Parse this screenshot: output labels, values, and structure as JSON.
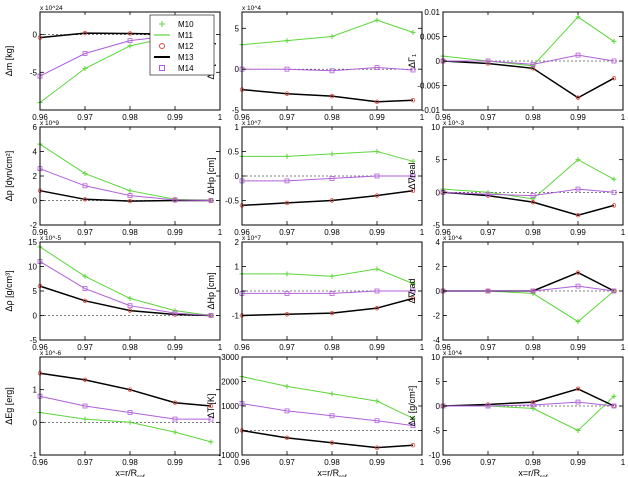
{
  "figure": {
    "xlabel": "x=r/R",
    "xlabel_sub": "ref",
    "xticks": [
      "0.96",
      "0.97",
      "0.98",
      "0.99",
      "1"
    ]
  },
  "legend": {
    "entries": [
      {
        "label": "M10",
        "color": "#5dd63a",
        "marker": "plus"
      },
      {
        "label": "M11",
        "color": "#5dd63a",
        "marker": "line"
      },
      {
        "label": "M12",
        "color": "#e0453a",
        "marker": "circle"
      },
      {
        "label": "M13",
        "color": "#000000",
        "marker": "line"
      },
      {
        "label": "M14",
        "color": "#b05fd8",
        "marker": "square"
      }
    ]
  },
  "colors": {
    "green": "#5dd63a",
    "red": "#e0453a",
    "black": "#000000",
    "purple": "#b05fd8",
    "blue": "#2a4fd8"
  },
  "chart_data": [
    {
      "type": "line",
      "ylabel": "Δm [kg]",
      "ylim": [
        -10,
        3
      ],
      "scale": "x 10^24",
      "yticks": [
        -10,
        -5,
        0
      ],
      "ytick_labels": [
        "",
        "-5",
        "0"
      ],
      "series": [
        {
          "name": "M10",
          "x": [
            0.96,
            0.97,
            0.98,
            0.99,
            0.998
          ],
          "y": [
            -9,
            -4.5,
            -1.5,
            -0.2,
            0
          ]
        },
        {
          "name": "M13",
          "x": [
            0.96,
            0.97,
            0.98,
            0.99,
            0.998
          ],
          "y": [
            -0.4,
            0.2,
            0.15,
            0.05,
            0
          ]
        },
        {
          "name": "M14",
          "x": [
            0.96,
            0.97,
            0.98,
            0.99,
            0.998
          ],
          "y": [
            -5.5,
            -2.5,
            -0.8,
            -0.1,
            0
          ]
        }
      ]
    },
    {
      "type": "line",
      "ylabel": "Δc [cm/s]",
      "ylim": [
        -5,
        7
      ],
      "scale": "x 10^4",
      "yticks": [
        -5,
        0,
        5
      ],
      "ytick_labels": [
        "-5",
        "0",
        "5"
      ],
      "series": [
        {
          "name": "M10",
          "x": [
            0.96,
            0.97,
            0.98,
            0.99,
            0.998
          ],
          "y": [
            3,
            3.5,
            4,
            6,
            4.5
          ]
        },
        {
          "name": "M13",
          "x": [
            0.96,
            0.97,
            0.98,
            0.99,
            0.998
          ],
          "y": [
            -2.5,
            -3,
            -3.3,
            -4,
            -3.8
          ]
        },
        {
          "name": "M14",
          "x": [
            0.96,
            0.97,
            0.98,
            0.99,
            0.998
          ],
          "y": [
            0,
            0,
            -0.2,
            0.2,
            -0.1
          ]
        }
      ]
    },
    {
      "type": "line",
      "ylabel": "ΔΓ₁",
      "ylim": [
        -0.01,
        0.01
      ],
      "scale": "",
      "yticks": [
        -0.01,
        -0.005,
        0,
        0.005,
        0.01
      ],
      "ytick_labels": [
        "-0.01",
        "-0.005",
        "0",
        "0.005",
        "0.01"
      ],
      "series": [
        {
          "name": "M10",
          "x": [
            0.96,
            0.97,
            0.98,
            0.99,
            0.998
          ],
          "y": [
            0.001,
            0,
            -0.001,
            0.009,
            0.004
          ]
        },
        {
          "name": "M13",
          "x": [
            0.96,
            0.97,
            0.98,
            0.99,
            0.998
          ],
          "y": [
            0,
            -0.0005,
            -0.0015,
            -0.0075,
            -0.0035
          ]
        },
        {
          "name": "M14",
          "x": [
            0.96,
            0.97,
            0.98,
            0.99,
            0.998
          ],
          "y": [
            0,
            0,
            -0.0007,
            0.0012,
            0
          ]
        }
      ]
    },
    {
      "type": "line",
      "ylabel": "Δp [dyn/cm²]",
      "ylim": [
        -2,
        6
      ],
      "scale": "x 10^9",
      "yticks": [
        -2,
        0,
        2,
        4,
        6
      ],
      "ytick_labels": [
        "-2",
        "0",
        "2",
        "4",
        "6"
      ],
      "series": [
        {
          "name": "M10",
          "x": [
            0.96,
            0.97,
            0.98,
            0.99,
            0.998
          ],
          "y": [
            4.6,
            2.2,
            0.8,
            0.1,
            0
          ]
        },
        {
          "name": "M13",
          "x": [
            0.96,
            0.97,
            0.98,
            0.99,
            0.998
          ],
          "y": [
            0.8,
            0.1,
            -0.05,
            0,
            0
          ]
        },
        {
          "name": "M14",
          "x": [
            0.96,
            0.97,
            0.98,
            0.99,
            0.998
          ],
          "y": [
            2.6,
            1.2,
            0.4,
            0.05,
            0
          ]
        }
      ]
    },
    {
      "type": "line",
      "ylabel": "ΔHp [cm]",
      "ylim": [
        -1,
        1
      ],
      "scale": "x 10^7",
      "yticks": [
        -1,
        -0.5,
        0,
        0.5,
        1
      ],
      "ytick_labels": [
        "",
        "-0.5",
        "0",
        "0.5",
        "1"
      ],
      "series": [
        {
          "name": "M10",
          "x": [
            0.96,
            0.97,
            0.98,
            0.99,
            0.998
          ],
          "y": [
            0.4,
            0.4,
            0.45,
            0.5,
            0.3
          ]
        },
        {
          "name": "M13",
          "x": [
            0.96,
            0.97,
            0.98,
            0.99,
            0.998
          ],
          "y": [
            -0.6,
            -0.55,
            -0.5,
            -0.4,
            -0.3
          ]
        },
        {
          "name": "M14",
          "x": [
            0.96,
            0.97,
            0.98,
            0.99,
            0.998
          ],
          "y": [
            -0.1,
            -0.1,
            -0.05,
            0,
            0
          ]
        }
      ]
    },
    {
      "type": "line",
      "ylabel": "Δ∇real",
      "ylim": [
        -5,
        10
      ],
      "scale": "x 10^-3",
      "yticks": [
        -5,
        0,
        5,
        10
      ],
      "ytick_labels": [
        "-5",
        "0",
        "5",
        "10"
      ],
      "series": [
        {
          "name": "M10",
          "x": [
            0.96,
            0.97,
            0.98,
            0.99,
            0.998
          ],
          "y": [
            0.5,
            0,
            -1,
            5,
            2
          ]
        },
        {
          "name": "M13",
          "x": [
            0.96,
            0.97,
            0.98,
            0.99,
            0.998
          ],
          "y": [
            0,
            -0.5,
            -1.5,
            -3.5,
            -2
          ]
        },
        {
          "name": "M14",
          "x": [
            0.96,
            0.97,
            0.98,
            0.99,
            0.998
          ],
          "y": [
            0,
            -0.3,
            -0.5,
            0.5,
            0
          ]
        }
      ]
    },
    {
      "type": "line",
      "ylabel": "Δρ [g/cm³]",
      "ylim": [
        -5,
        15
      ],
      "scale": "x 10^-5",
      "yticks": [
        -5,
        0,
        5,
        10,
        15
      ],
      "ytick_labels": [
        "-5",
        "0",
        "5",
        "10",
        "15"
      ],
      "series": [
        {
          "name": "M10",
          "x": [
            0.96,
            0.97,
            0.98,
            0.99,
            0.998
          ],
          "y": [
            14,
            8,
            3.5,
            1,
            0
          ]
        },
        {
          "name": "M13",
          "x": [
            0.96,
            0.97,
            0.98,
            0.99,
            0.998
          ],
          "y": [
            6,
            3,
            1,
            0.2,
            0
          ]
        },
        {
          "name": "M14",
          "x": [
            0.96,
            0.97,
            0.98,
            0.99,
            0.998
          ],
          "y": [
            11,
            5.5,
            2,
            0.5,
            0
          ]
        }
      ]
    },
    {
      "type": "line",
      "ylabel": "ΔHp [cm]",
      "ylim": [
        -2,
        2
      ],
      "scale": "x 10^7",
      "yticks": [
        -2,
        -1,
        0,
        1,
        2
      ],
      "ytick_labels": [
        "",
        "-1",
        "0",
        "1",
        "2"
      ],
      "series": [
        {
          "name": "M10",
          "x": [
            0.96,
            0.97,
            0.98,
            0.99,
            0.998
          ],
          "y": [
            0.7,
            0.7,
            0.6,
            0.9,
            0.3
          ]
        },
        {
          "name": "M13",
          "x": [
            0.96,
            0.97,
            0.98,
            0.99,
            0.998
          ],
          "y": [
            -1,
            -0.95,
            -0.9,
            -0.7,
            -0.3
          ]
        },
        {
          "name": "M14",
          "x": [
            0.96,
            0.97,
            0.98,
            0.99,
            0.998
          ],
          "y": [
            -0.1,
            -0.1,
            -0.1,
            0,
            0
          ]
        }
      ]
    },
    {
      "type": "line",
      "ylabel": "Δ∇rad",
      "ylim": [
        -4,
        4
      ],
      "scale": "x 10^4",
      "yticks": [
        -4,
        -2,
        0,
        2,
        4
      ],
      "ytick_labels": [
        "-4",
        "-2",
        "0",
        "2",
        "4"
      ],
      "series": [
        {
          "name": "M10",
          "x": [
            0.96,
            0.97,
            0.98,
            0.99,
            0.998
          ],
          "y": [
            0,
            0,
            -0.2,
            -2.5,
            0
          ]
        },
        {
          "name": "M13",
          "x": [
            0.96,
            0.97,
            0.98,
            0.99,
            0.998
          ],
          "y": [
            0,
            0,
            0,
            1.5,
            0
          ]
        },
        {
          "name": "M14",
          "x": [
            0.96,
            0.97,
            0.98,
            0.99,
            0.998
          ],
          "y": [
            0,
            0,
            0,
            0.4,
            0
          ]
        }
      ]
    },
    {
      "type": "line",
      "ylabel": "ΔEg [erg]",
      "ylim": [
        -1,
        2
      ],
      "scale": "x 10^-6",
      "yticks": [
        -1,
        0,
        1
      ],
      "ytick_labels": [
        "-1",
        "0",
        "1"
      ],
      "series": [
        {
          "name": "M10",
          "x": [
            0.96,
            0.97,
            0.98,
            0.99,
            0.998
          ],
          "y": [
            0.3,
            0.1,
            0,
            -0.3,
            -0.6
          ]
        },
        {
          "name": "M13",
          "x": [
            0.96,
            0.97,
            0.98,
            0.99,
            0.998
          ],
          "y": [
            1.5,
            1.3,
            1,
            0.6,
            0.5
          ]
        },
        {
          "name": "M14",
          "x": [
            0.96,
            0.97,
            0.98,
            0.99,
            0.998
          ],
          "y": [
            0.8,
            0.5,
            0.3,
            0.1,
            0.1
          ]
        }
      ]
    },
    {
      "type": "line",
      "ylabel": "ΔT [K]",
      "ylim": [
        -1000,
        3000
      ],
      "scale": "",
      "yticks": [
        -1000,
        0,
        1000,
        2000,
        3000
      ],
      "ytick_labels": [
        "-1000",
        "0",
        "1000",
        "2000",
        "3000"
      ],
      "series": [
        {
          "name": "M10",
          "x": [
            0.96,
            0.97,
            0.98,
            0.99,
            0.998
          ],
          "y": [
            2200,
            1800,
            1500,
            1200,
            500
          ]
        },
        {
          "name": "M13",
          "x": [
            0.96,
            0.97,
            0.98,
            0.99,
            0.998
          ],
          "y": [
            0,
            -300,
            -500,
            -700,
            -600
          ]
        },
        {
          "name": "M14",
          "x": [
            0.96,
            0.97,
            0.98,
            0.99,
            0.998
          ],
          "y": [
            1100,
            800,
            600,
            400,
            200
          ]
        }
      ]
    },
    {
      "type": "line",
      "ylabel": "Δκ [g/cm²]",
      "ylim": [
        -10,
        10
      ],
      "scale": "x 10^4",
      "yticks": [
        -10,
        -5,
        0,
        5,
        10
      ],
      "ytick_labels": [
        "-10",
        "-5",
        "0",
        "5",
        "10"
      ],
      "series": [
        {
          "name": "M10",
          "x": [
            0.96,
            0.97,
            0.98,
            0.99,
            0.998
          ],
          "y": [
            0,
            0,
            -0.5,
            -5,
            2
          ]
        },
        {
          "name": "M13",
          "x": [
            0.96,
            0.97,
            0.98,
            0.99,
            0.998
          ],
          "y": [
            0,
            0.3,
            0.8,
            3.5,
            0
          ]
        },
        {
          "name": "M14",
          "x": [
            0.96,
            0.97,
            0.98,
            0.99,
            0.998
          ],
          "y": [
            0,
            0,
            0.2,
            0.8,
            0
          ]
        }
      ]
    }
  ]
}
